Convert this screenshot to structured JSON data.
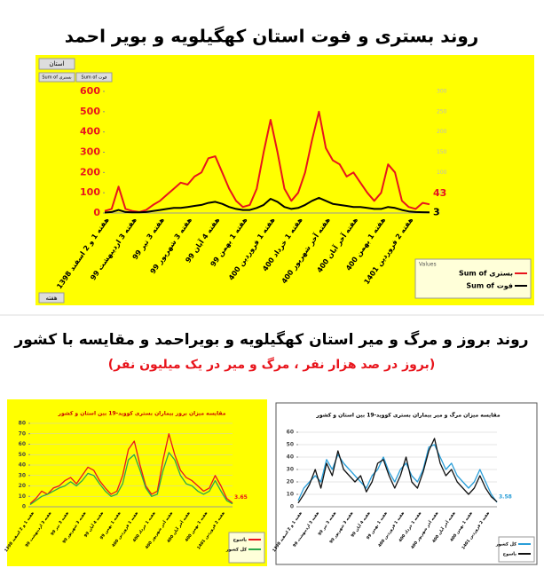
{
  "section_title": "روند بروز و مرگ و میر استان کهگیلویه و بویراحمد و مقایسه با کشور",
  "section_subtitle": "(بروز در صد هزار نفر ، مرگ و میر در یک میلیون نفر)",
  "pivot_buttons": [
    "استان",
    "Sum of بستری",
    "Sum of فوت",
    "هفته"
  ],
  "chart_data": [
    {
      "type": "line",
      "title": "روند بستری و فوت استان کهگیلویه و بویر احمد",
      "categories": [
        "هفته 1 و 2 اسفند 1398",
        null,
        null,
        null,
        "هفته 3 اردیبهشت 99",
        null,
        null,
        null,
        "هفته 3 تیر 99",
        null,
        null,
        null,
        "هفته 3 شهریور 99",
        null,
        null,
        null,
        "هفته 4 آبان 99",
        null,
        null,
        null,
        "هفته 1 بهمن 99",
        null,
        null,
        null,
        "هفته 1 فروردین 400",
        null,
        null,
        null,
        "هفته 1 خرداد 400",
        null,
        null,
        null,
        "هفته آخر شهریور 400",
        null,
        null,
        null,
        "هفته آخر آبان 400",
        null,
        null,
        null,
        "هفته 1 بهمن 400",
        null,
        null,
        null,
        "هفته 2 فروردین 1401",
        null,
        null,
        null
      ],
      "series": [
        {
          "name": "Sum of بستری",
          "color": "#e8141c",
          "values": [
            10,
            20,
            130,
            20,
            10,
            5,
            15,
            40,
            60,
            90,
            120,
            150,
            140,
            180,
            200,
            270,
            280,
            200,
            120,
            60,
            30,
            40,
            120,
            300,
            460,
            300,
            120,
            60,
            100,
            200,
            360,
            500,
            320,
            260,
            240,
            180,
            200,
            150,
            100,
            60,
            100,
            240,
            200,
            60,
            30,
            20,
            50,
            43
          ]
        },
        {
          "name": "Sum of فوت",
          "color": "#000000",
          "values": [
            2,
            5,
            15,
            5,
            3,
            3,
            5,
            10,
            15,
            20,
            25,
            25,
            30,
            35,
            40,
            50,
            55,
            45,
            30,
            20,
            15,
            15,
            25,
            40,
            70,
            55,
            30,
            20,
            25,
            40,
            60,
            75,
            60,
            45,
            40,
            35,
            30,
            30,
            25,
            20,
            20,
            30,
            25,
            15,
            8,
            5,
            4,
            3
          ]
        }
      ],
      "ylim": [
        0,
        600
      ],
      "yticks": [
        0,
        100,
        200,
        300,
        400,
        500,
        600
      ],
      "y2lim": [
        0,
        300
      ],
      "y2ticks": [
        0,
        50,
        100,
        150,
        200,
        250,
        300
      ],
      "grid": false,
      "legend_title": "Values",
      "legend": "lower right",
      "background": "#ffff00",
      "tick_color": "#e8141c"
    },
    {
      "type": "line",
      "title": "مقایسه میزان بروز بیماران بستری کووید-19 بین استان و کشور",
      "categories": [
        "هفته 1 و 2 اسفند 1398",
        null,
        null,
        "هفته 3 اردیبهشت 99",
        null,
        null,
        "هفته 3 تیر 99",
        null,
        null,
        "هفته 3 شهریور 99",
        null,
        null,
        "هفته 4 آبان 99",
        null,
        null,
        "هفته 1 بهمن 99",
        null,
        null,
        "هفته 1 فروردین 400",
        null,
        null,
        "هفته 1 خرداد 400",
        null,
        null,
        "هفته آخر شهریور 400",
        null,
        null,
        "هفته آخر آبان 400",
        null,
        null,
        "هفته 1 بهمن 400",
        null,
        null,
        "هفته 2 فروردین 1401",
        null,
        null
      ],
      "series": [
        {
          "name": "یاسوج",
          "color": "#e8141c",
          "values": [
            3,
            8,
            15,
            12,
            18,
            20,
            25,
            28,
            22,
            30,
            38,
            35,
            25,
            18,
            12,
            15,
            30,
            55,
            63,
            40,
            20,
            12,
            15,
            45,
            70,
            50,
            35,
            28,
            25,
            20,
            15,
            18,
            30,
            20,
            8,
            3.65
          ]
        },
        {
          "name": "کل کشور",
          "color": "#2aa84a",
          "values": [
            2,
            6,
            10,
            12,
            15,
            18,
            20,
            24,
            20,
            25,
            32,
            30,
            22,
            15,
            10,
            12,
            22,
            45,
            50,
            35,
            18,
            10,
            12,
            35,
            52,
            45,
            30,
            22,
            20,
            15,
            12,
            15,
            25,
            15,
            6,
            2.85
          ]
        }
      ],
      "ylim": [
        0,
        80
      ],
      "yticks": [
        0,
        10,
        20,
        30,
        40,
        50,
        60,
        70,
        80
      ],
      "grid": true,
      "legend": "lower right",
      "background": "#ffff00",
      "tick_color": "#444444"
    },
    {
      "type": "line",
      "title": "مقایسه میزان مرگ و میر بیماران بستری کووید-19 بین استان و کشور",
      "categories": [
        "هفته 1 و 2 اسفند 1398",
        null,
        null,
        "هفته 3 اردیبهشت 99",
        null,
        null,
        "هفته 3 تیر 99",
        null,
        null,
        "هفته 3 شهریور 99",
        null,
        null,
        "هفته 4 آبان 99",
        null,
        null,
        "هفته 1 بهمن 99",
        null,
        null,
        "هفته 1 فروردین 400",
        null,
        null,
        "هفته 1 خرداد 400",
        null,
        null,
        "هفته آخر شهریور 400",
        null,
        null,
        "هفته آخر آبان 400",
        null,
        null,
        "هفته 1 بهمن 400",
        null,
        null,
        "هفته 2 فروردین 1401",
        null,
        null
      ],
      "series": [
        {
          "name": "کل کشور",
          "color": "#2a9ed8",
          "values": [
            5,
            15,
            20,
            25,
            20,
            38,
            30,
            42,
            35,
            30,
            25,
            20,
            15,
            25,
            30,
            40,
            28,
            20,
            30,
            35,
            25,
            20,
            30,
            48,
            50,
            40,
            30,
            35,
            25,
            20,
            15,
            20,
            30,
            20,
            10,
            3.58
          ]
        },
        {
          "name": "یاسوج",
          "color": "#111111",
          "values": [
            3,
            10,
            18,
            30,
            15,
            35,
            25,
            45,
            30,
            25,
            20,
            25,
            12,
            20,
            35,
            38,
            25,
            15,
            25,
            40,
            20,
            15,
            28,
            45,
            55,
            35,
            25,
            30,
            20,
            15,
            10,
            15,
            25,
            15,
            8,
            4
          ]
        }
      ],
      "ylim": [
        0,
        60
      ],
      "yticks": [
        0,
        10,
        20,
        30,
        40,
        50,
        60
      ],
      "grid": true,
      "legend": "lower right",
      "background": "#ffffff",
      "tick_color": "#444444"
    }
  ]
}
